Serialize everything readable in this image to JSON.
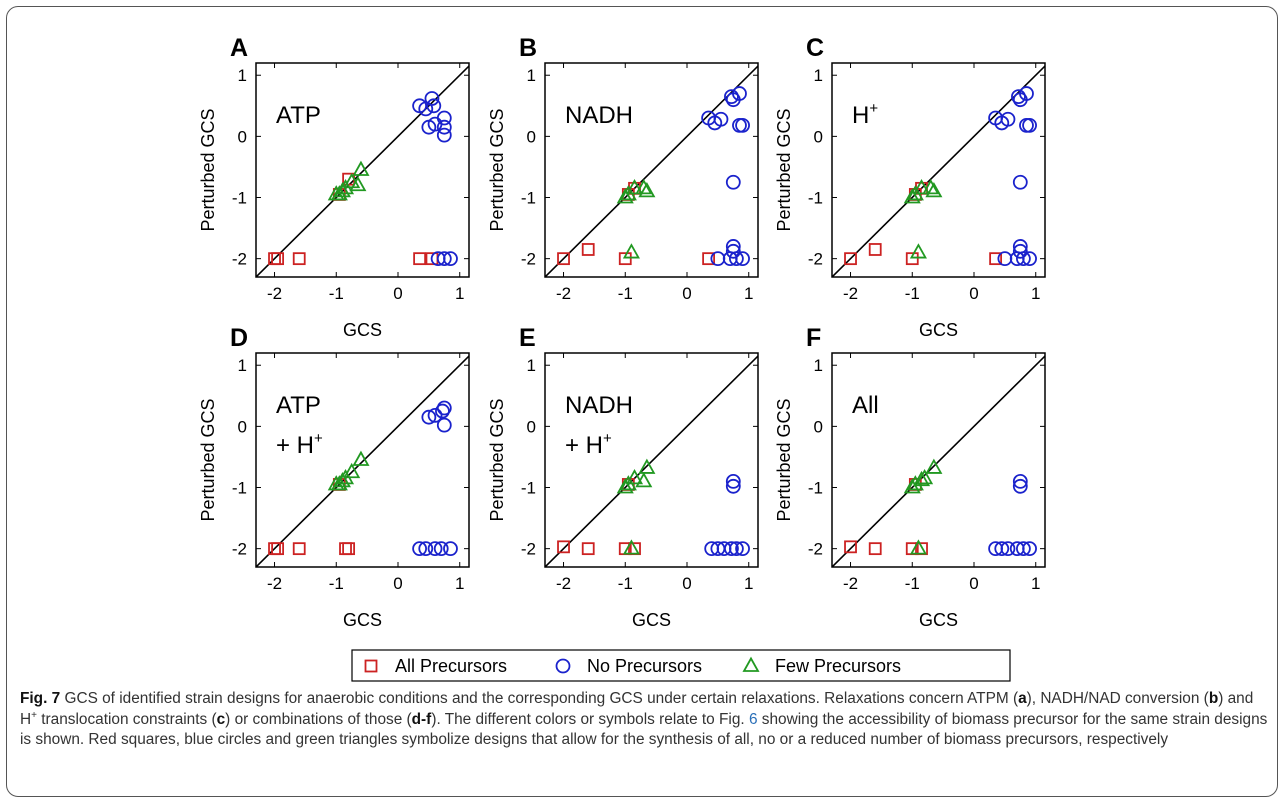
{
  "figure": {
    "x_tick_labels": [
      "-2",
      "-1",
      "0",
      "1"
    ],
    "y_tick_labels": [
      "-2",
      "-1",
      "0",
      "1"
    ],
    "xlabel": "GCS",
    "ylabel": "Perturbed  GCS",
    "colors": {
      "all": "#cc2222",
      "none": "#1a22cc",
      "few": "#229922",
      "diagonal": "#000000"
    }
  },
  "legend": {
    "items": [
      {
        "key": "all",
        "marker": "square",
        "label": "All Precursors"
      },
      {
        "key": "none",
        "marker": "circle",
        "label": "No Precursors"
      },
      {
        "key": "few",
        "marker": "triangle",
        "label": "Few Precursors"
      }
    ]
  },
  "chart_data": [
    {
      "panel": "A",
      "type": "scatter",
      "xlabel": "GCS",
      "ylabel": "Perturbed  GCS",
      "xlim": [
        -2.3,
        1.15
      ],
      "ylim": [
        -2.3,
        1.2
      ],
      "annotation": [
        "ATP"
      ],
      "series": [
        {
          "name": "All Precursors",
          "points": [
            [
              -2.0,
              -2.0
            ],
            [
              -1.95,
              -2.0
            ],
            [
              -1.6,
              -2.0
            ],
            [
              -0.95,
              -0.95
            ],
            [
              -0.8,
              -0.7
            ],
            [
              0.35,
              -2.0
            ],
            [
              0.55,
              -2.0
            ]
          ]
        },
        {
          "name": "No Precursors",
          "points": [
            [
              0.35,
              0.5
            ],
            [
              0.45,
              0.45
            ],
            [
              0.55,
              0.62
            ],
            [
              0.58,
              0.5
            ],
            [
              0.5,
              0.15
            ],
            [
              0.6,
              0.2
            ],
            [
              0.75,
              0.3
            ],
            [
              0.75,
              0.15
            ],
            [
              0.75,
              0.02
            ],
            [
              0.65,
              -2.0
            ],
            [
              0.75,
              -2.0
            ],
            [
              0.85,
              -2.0
            ]
          ]
        },
        {
          "name": "Few Precursors",
          "points": [
            [
              -1.0,
              -0.95
            ],
            [
              -0.95,
              -0.95
            ],
            [
              -0.9,
              -0.9
            ],
            [
              -0.85,
              -0.85
            ],
            [
              -0.75,
              -0.75
            ],
            [
              -0.65,
              -0.8
            ],
            [
              -0.6,
              -0.55
            ]
          ]
        }
      ]
    },
    {
      "panel": "B",
      "type": "scatter",
      "xlabel": "",
      "ylabel": "Perturbed  GCS",
      "xlim": [
        -2.3,
        1.15
      ],
      "ylim": [
        -2.3,
        1.2
      ],
      "annotation": [
        "NADH"
      ],
      "series": [
        {
          "name": "All Precursors",
          "points": [
            [
              -2.0,
              -2.0
            ],
            [
              -1.6,
              -1.85
            ],
            [
              -1.0,
              -2.0
            ],
            [
              -0.95,
              -0.95
            ],
            [
              -0.85,
              -0.85
            ],
            [
              0.35,
              -2.0
            ]
          ]
        },
        {
          "name": "No Precursors",
          "points": [
            [
              0.35,
              0.3
            ],
            [
              0.45,
              0.22
            ],
            [
              0.55,
              0.28
            ],
            [
              0.72,
              0.65
            ],
            [
              0.75,
              0.6
            ],
            [
              0.85,
              0.7
            ],
            [
              0.85,
              0.18
            ],
            [
              0.9,
              0.18
            ],
            [
              0.75,
              -0.75
            ],
            [
              0.75,
              -1.8
            ],
            [
              0.75,
              -1.88
            ],
            [
              0.5,
              -2.0
            ],
            [
              0.7,
              -2.0
            ],
            [
              0.8,
              -2.0
            ],
            [
              0.9,
              -2.0
            ]
          ]
        },
        {
          "name": "Few Precursors",
          "points": [
            [
              -1.0,
              -1.0
            ],
            [
              -0.95,
              -0.95
            ],
            [
              -0.85,
              -0.85
            ],
            [
              -0.7,
              -0.85
            ],
            [
              -0.65,
              -0.9
            ],
            [
              -0.9,
              -1.9
            ]
          ]
        }
      ]
    },
    {
      "panel": "C",
      "type": "scatter",
      "xlabel": "GCS",
      "ylabel": "Perturbed  GCS",
      "xlim": [
        -2.3,
        1.15
      ],
      "ylim": [
        -2.3,
        1.2
      ],
      "annotation": [
        "H",
        "+"
      ],
      "series": [
        {
          "name": "All Precursors",
          "points": [
            [
              -2.0,
              -2.0
            ],
            [
              -1.6,
              -1.85
            ],
            [
              -1.0,
              -2.0
            ],
            [
              -0.95,
              -0.95
            ],
            [
              -0.85,
              -0.85
            ],
            [
              0.35,
              -2.0
            ]
          ]
        },
        {
          "name": "No Precursors",
          "points": [
            [
              0.35,
              0.3
            ],
            [
              0.45,
              0.22
            ],
            [
              0.55,
              0.28
            ],
            [
              0.72,
              0.65
            ],
            [
              0.75,
              0.6
            ],
            [
              0.85,
              0.7
            ],
            [
              0.85,
              0.18
            ],
            [
              0.9,
              0.18
            ],
            [
              0.75,
              -0.75
            ],
            [
              0.75,
              -1.8
            ],
            [
              0.75,
              -1.88
            ],
            [
              0.5,
              -2.0
            ],
            [
              0.7,
              -2.0
            ],
            [
              0.8,
              -2.0
            ],
            [
              0.9,
              -2.0
            ]
          ]
        },
        {
          "name": "Few Precursors",
          "points": [
            [
              -1.0,
              -1.0
            ],
            [
              -0.95,
              -0.95
            ],
            [
              -0.85,
              -0.85
            ],
            [
              -0.7,
              -0.85
            ],
            [
              -0.65,
              -0.9
            ],
            [
              -0.9,
              -1.9
            ]
          ]
        }
      ]
    },
    {
      "panel": "D",
      "type": "scatter",
      "xlabel": "GCS",
      "ylabel": "Perturbed  GCS",
      "xlim": [
        -2.3,
        1.15
      ],
      "ylim": [
        -2.3,
        1.2
      ],
      "annotation": [
        "ATP",
        "+ H",
        "+"
      ],
      "series": [
        {
          "name": "All Precursors",
          "points": [
            [
              -2.0,
              -2.0
            ],
            [
              -1.95,
              -2.0
            ],
            [
              -1.6,
              -2.0
            ],
            [
              -0.95,
              -0.95
            ],
            [
              -0.85,
              -2.0
            ],
            [
              -0.8,
              -2.0
            ]
          ]
        },
        {
          "name": "No Precursors",
          "points": [
            [
              0.5,
              0.15
            ],
            [
              0.6,
              0.18
            ],
            [
              0.72,
              0.25
            ],
            [
              0.75,
              0.3
            ],
            [
              0.75,
              0.02
            ],
            [
              0.35,
              -2.0
            ],
            [
              0.45,
              -2.0
            ],
            [
              0.6,
              -2.0
            ],
            [
              0.7,
              -2.0
            ],
            [
              0.85,
              -2.0
            ]
          ]
        },
        {
          "name": "Few Precursors",
          "points": [
            [
              -1.0,
              -0.95
            ],
            [
              -0.95,
              -0.95
            ],
            [
              -0.9,
              -0.9
            ],
            [
              -0.85,
              -0.85
            ],
            [
              -0.75,
              -0.75
            ],
            [
              -0.6,
              -0.55
            ]
          ]
        }
      ]
    },
    {
      "panel": "E",
      "type": "scatter",
      "xlabel": "GCS",
      "ylabel": "Perturbed  GCS",
      "xlim": [
        -2.3,
        1.15
      ],
      "ylim": [
        -2.3,
        1.2
      ],
      "annotation": [
        "NADH",
        "+ H",
        "+"
      ],
      "series": [
        {
          "name": "All Precursors",
          "points": [
            [
              -2.0,
              -1.97
            ],
            [
              -1.6,
              -2.0
            ],
            [
              -1.0,
              -2.0
            ],
            [
              -0.95,
              -0.95
            ],
            [
              -0.85,
              -2.0
            ]
          ]
        },
        {
          "name": "No Precursors",
          "points": [
            [
              0.75,
              -0.9
            ],
            [
              0.75,
              -0.98
            ],
            [
              0.4,
              -2.0
            ],
            [
              0.5,
              -2.0
            ],
            [
              0.6,
              -2.0
            ],
            [
              0.72,
              -2.0
            ],
            [
              0.8,
              -2.0
            ],
            [
              0.9,
              -2.0
            ]
          ]
        },
        {
          "name": "Few Precursors",
          "points": [
            [
              -1.0,
              -1.0
            ],
            [
              -0.95,
              -0.95
            ],
            [
              -0.85,
              -0.85
            ],
            [
              -0.7,
              -0.9
            ],
            [
              -0.65,
              -0.68
            ],
            [
              -0.9,
              -2.0
            ]
          ]
        }
      ]
    },
    {
      "panel": "F",
      "type": "scatter",
      "xlabel": "GCS",
      "ylabel": "Perturbed  GCS",
      "xlim": [
        -2.3,
        1.15
      ],
      "ylim": [
        -2.3,
        1.2
      ],
      "annotation": [
        "All"
      ],
      "series": [
        {
          "name": "All Precursors",
          "points": [
            [
              -2.0,
              -1.97
            ],
            [
              -1.6,
              -2.0
            ],
            [
              -1.0,
              -2.0
            ],
            [
              -0.95,
              -0.95
            ],
            [
              -0.85,
              -2.0
            ]
          ]
        },
        {
          "name": "No Precursors",
          "points": [
            [
              0.75,
              -0.9
            ],
            [
              0.75,
              -0.98
            ],
            [
              0.35,
              -2.0
            ],
            [
              0.45,
              -2.0
            ],
            [
              0.55,
              -2.0
            ],
            [
              0.7,
              -2.0
            ],
            [
              0.8,
              -2.0
            ],
            [
              0.9,
              -2.0
            ]
          ]
        },
        {
          "name": "Few Precursors",
          "points": [
            [
              -1.0,
              -1.0
            ],
            [
              -0.95,
              -0.95
            ],
            [
              -0.85,
              -0.88
            ],
            [
              -0.8,
              -0.85
            ],
            [
              -0.65,
              -0.68
            ],
            [
              -0.9,
              -2.0
            ]
          ]
        }
      ]
    }
  ],
  "caption": {
    "fig_label": "Fig. 7",
    "p1": " GCS of identified strain designs for anaerobic conditions and the corresponding GCS under certain relaxations. Relaxations concern ATPM (",
    "a": "a",
    "p2": "), NADH/NAD conversion (",
    "b": "b",
    "p3": ") and H",
    "sup": "+",
    "p4": " translocation constraints (",
    "c": "c",
    "p5": ") or combinations of those (",
    "df": "d-f",
    "p6": "). The different colors or symbols relate to Fig. ",
    "fig_ref": "6",
    "p7": " showing the accessibility of biomass precursor for the same strain designs is shown. Red squares, blue circles and green triangles symbolize designs that allow for the synthesis of all, no or a reduced number of biomass precursors, respectively"
  }
}
